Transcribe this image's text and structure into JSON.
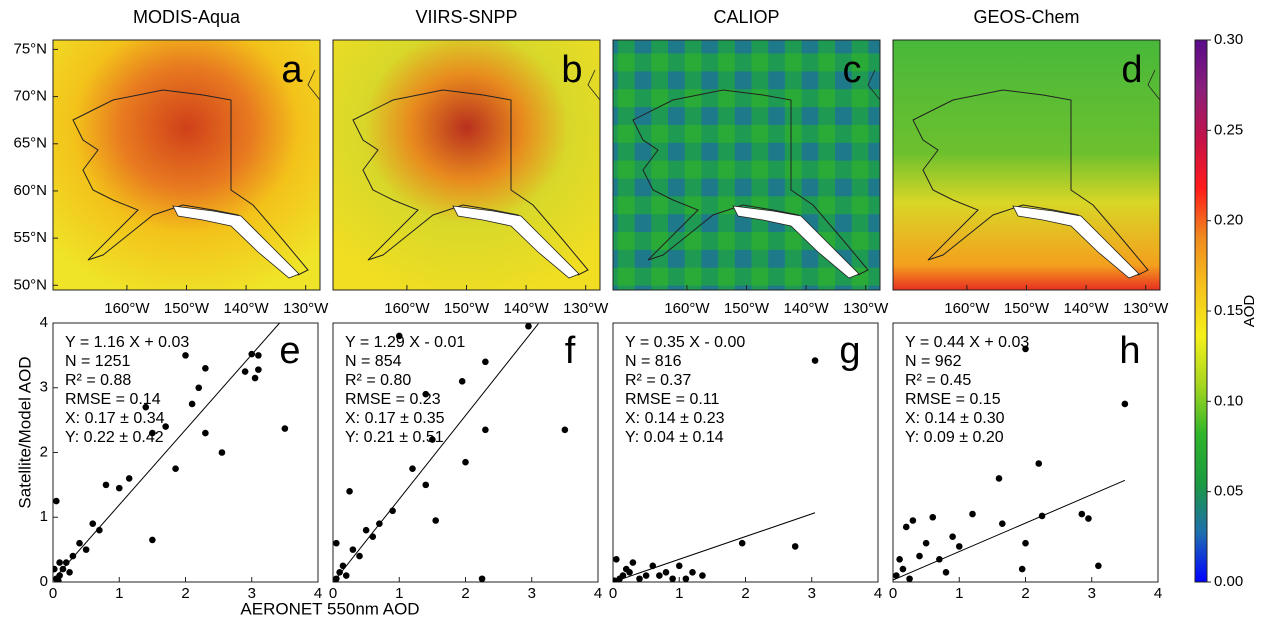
{
  "chart_data": [
    {
      "type": "map",
      "title": "MODIS-Aqua",
      "label": "a",
      "xlim": [
        -172.4,
        -127.6
      ],
      "ylim": [
        49.5,
        76
      ],
      "xticks": [
        {
          "value": -160,
          "label": "160°W"
        },
        {
          "value": -150,
          "label": "150°W"
        },
        {
          "value": -140,
          "label": "140°W"
        },
        {
          "value": -130,
          "label": "130°W"
        }
      ],
      "yticks": [
        {
          "value": 50,
          "label": "50°N"
        },
        {
          "value": 55,
          "label": "55°N"
        },
        {
          "value": 60,
          "label": "60°N"
        },
        {
          "value": 65,
          "label": "65°N"
        },
        {
          "value": 70,
          "label": "70°N"
        },
        {
          "value": 75,
          "label": "75°N"
        }
      ]
    },
    {
      "type": "map",
      "title": "VIIRS-SNPP",
      "label": "b",
      "xlim": [
        -172.4,
        -127.6
      ],
      "ylim": [
        49.5,
        76
      ],
      "xticks": [
        {
          "value": -160,
          "label": "160°W"
        },
        {
          "value": -150,
          "label": "150°W"
        },
        {
          "value": -140,
          "label": "140°W"
        },
        {
          "value": -130,
          "label": "130°W"
        }
      ]
    },
    {
      "type": "map",
      "title": "CALIOP",
      "label": "c",
      "xlim": [
        -172.4,
        -127.6
      ],
      "ylim": [
        49.5,
        76
      ],
      "xticks": [
        {
          "value": -160,
          "label": "160°W"
        },
        {
          "value": -150,
          "label": "150°W"
        },
        {
          "value": -140,
          "label": "140°W"
        },
        {
          "value": -130,
          "label": "130°W"
        }
      ]
    },
    {
      "type": "map",
      "title": "GEOS-Chem",
      "label": "d",
      "xlim": [
        -172.4,
        -127.6
      ],
      "ylim": [
        49.5,
        76
      ],
      "xticks": [
        {
          "value": -160,
          "label": "160°W"
        },
        {
          "value": -150,
          "label": "150°W"
        },
        {
          "value": -140,
          "label": "140°W"
        },
        {
          "value": -130,
          "label": "130°W"
        }
      ]
    },
    {
      "type": "colorbar",
      "label": "AOD",
      "ylim": [
        0,
        0.3
      ],
      "yticks": [
        {
          "value": 0,
          "label": "0.00"
        },
        {
          "value": 0.05,
          "label": "0.05"
        },
        {
          "value": 0.1,
          "label": "0.10"
        },
        {
          "value": 0.15,
          "label": "0.15"
        },
        {
          "value": 0.2,
          "label": "0.20"
        },
        {
          "value": 0.25,
          "label": "0.25"
        },
        {
          "value": 0.3,
          "label": "0.30"
        }
      ],
      "colors": [
        "#0000ff",
        "#1f6fb0",
        "#1a9a40",
        "#2fb52a",
        "#a6d61e",
        "#f5f01a",
        "#f5c11c",
        "#f08a1e",
        "#ff1a1a",
        "#c4124a",
        "#8a1f7a",
        "#5a0a8a"
      ]
    },
    {
      "type": "scatter",
      "label": "e",
      "ylabel": "Satellite/Model AOD",
      "annotations": [
        "Y = 1.16 X + 0.03",
        "N = 1251",
        "R² = 0.88",
        "RMSE = 0.14",
        "X: 0.17 ± 0.34",
        "Y: 0.22 ± 0.42"
      ],
      "xlim": [
        0,
        4
      ],
      "ylim": [
        0,
        4
      ],
      "xticks": [
        0,
        1,
        2,
        3,
        4
      ],
      "yticks": [
        0,
        1,
        2,
        3,
        4
      ],
      "x": [
        3.5,
        3.1,
        3.0,
        3.1,
        2.9,
        3.05,
        2.3,
        2.2,
        2.3,
        2.55,
        1.85,
        2.0,
        2.1,
        1.7,
        1.4,
        1.5,
        1.15,
        1.0,
        1.5,
        0.8,
        0.6,
        0.3,
        0.2,
        0.1,
        0.05,
        0.4,
        0.15,
        0.5,
        0.7,
        0.05,
        0.1,
        0.25,
        0.02,
        0.08
      ],
      "y": [
        2.37,
        3.5,
        3.52,
        3.28,
        3.25,
        3.15,
        3.3,
        3.0,
        2.3,
        2.0,
        1.75,
        3.5,
        2.75,
        2.4,
        2.7,
        2.3,
        1.6,
        1.45,
        0.65,
        1.5,
        0.9,
        0.4,
        0.3,
        0.1,
        1.25,
        0.6,
        0.2,
        0.5,
        0.8,
        0.05,
        0.3,
        0.15,
        0.2,
        0.02
      ],
      "fit": {
        "x": [
          0,
          3.42
        ],
        "y": [
          0.03,
          4.0
        ]
      }
    },
    {
      "type": "scatter",
      "label": "f",
      "xlabel": "AERONET 550nm AOD",
      "annotations": [
        "Y = 1.29 X - 0.01",
        "N = 854",
        "R² = 0.80",
        "RMSE = 0.23",
        "X: 0.17 ± 0.35",
        "Y: 0.21 ± 0.51"
      ],
      "xlim": [
        0,
        4
      ],
      "ylim": [
        0,
        4
      ],
      "xticks": [
        0,
        1,
        2,
        3,
        4
      ],
      "x": [
        3.5,
        2.95,
        2.3,
        2.3,
        2.25,
        1.0,
        1.4,
        1.5,
        2.0,
        1.95,
        1.4,
        1.2,
        1.55,
        0.9,
        0.5,
        0.25,
        0.3,
        0.15,
        0.05,
        0.1,
        0.4,
        0.7,
        0.05,
        0.2,
        0.6
      ],
      "y": [
        2.35,
        3.95,
        3.4,
        2.35,
        0.05,
        3.8,
        2.9,
        2.2,
        1.85,
        3.1,
        1.5,
        1.75,
        0.95,
        1.1,
        0.8,
        1.4,
        0.5,
        0.25,
        0.05,
        0.15,
        0.4,
        0.9,
        0.6,
        0.1,
        0.7
      ],
      "fit": {
        "x": [
          0,
          3.1
        ],
        "y": [
          -0.01,
          3.99
        ]
      }
    },
    {
      "type": "scatter",
      "label": "g",
      "annotations": [
        "Y = 0.35 X - 0.00",
        "N = 816",
        "R² = 0.37",
        "RMSE = 0.11",
        "X: 0.14 ± 0.23",
        "Y: 0.04 ± 0.14"
      ],
      "xlim": [
        0,
        4
      ],
      "ylim": [
        0,
        4
      ],
      "xticks": [
        0,
        1,
        2,
        3,
        4
      ],
      "x": [
        3.05,
        2.75,
        1.95,
        1.35,
        1.0,
        0.8,
        0.5,
        0.3,
        0.1,
        0.2,
        0.6,
        0.9,
        1.2,
        0.05,
        0.4,
        0.15,
        0.7,
        1.1,
        0.02,
        0.25
      ],
      "y": [
        3.42,
        0.55,
        0.6,
        0.1,
        0.25,
        0.15,
        0.1,
        0.3,
        0.05,
        0.2,
        0.25,
        0.05,
        0.15,
        0.35,
        0.05,
        0.1,
        0.1,
        0.05,
        0.02,
        0.15
      ],
      "fit": {
        "x": [
          0,
          3.05
        ],
        "y": [
          0,
          1.07
        ]
      }
    },
    {
      "type": "scatter",
      "label": "h",
      "annotations": [
        "Y = 0.44 X + 0.03",
        "N = 962",
        "R² = 0.45",
        "RMSE = 0.15",
        "X: 0.14 ± 0.30",
        "Y: 0.09 ± 0.20"
      ],
      "xlim": [
        0,
        4
      ],
      "ylim": [
        0,
        4
      ],
      "xticks": [
        0,
        1,
        2,
        3,
        4
      ],
      "x": [
        3.5,
        2.0,
        3.1,
        2.85,
        2.95,
        2.2,
        2.25,
        1.6,
        2.0,
        1.95,
        1.65,
        1.2,
        1.0,
        0.9,
        0.6,
        0.3,
        0.2,
        0.5,
        0.1,
        0.05,
        0.4,
        0.15,
        0.7,
        0.25,
        0.8
      ],
      "y": [
        2.75,
        3.6,
        0.25,
        1.05,
        0.98,
        1.83,
        1.02,
        1.6,
        0.6,
        0.2,
        0.9,
        1.05,
        0.55,
        0.7,
        1.0,
        0.95,
        0.85,
        0.6,
        0.35,
        0.1,
        0.4,
        0.2,
        0.35,
        0.05,
        0.15
      ],
      "fit": {
        "x": [
          0,
          3.5
        ],
        "y": [
          0.03,
          1.57
        ]
      }
    }
  ]
}
